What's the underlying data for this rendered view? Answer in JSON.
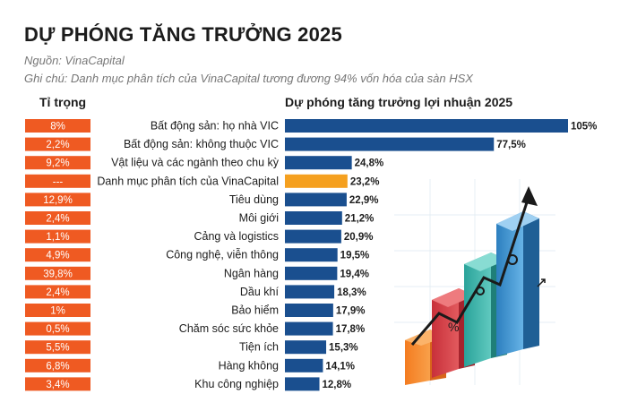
{
  "title": "DỰ PHÓNG TĂNG TRƯỞNG 2025",
  "source": "Nguồn: VinaCapital",
  "note": "Ghi chú: Danh mục phân tích của VinaCapital tương đương 94% vốn hóa của sàn HSX",
  "colors": {
    "weight_box": "#ef5a22",
    "bar": "#1a4f8f",
    "highlight_bar": "#f5a01f",
    "text": "#1c1c1c"
  },
  "chart_data": {
    "type": "bar",
    "orientation": "horizontal",
    "weight_header": "Tỉ trọng",
    "title": "Dự phóng tăng trưởng lợi nhuận 2025",
    "categories": [
      "Bất động sản: họ nhà VIC",
      "Bất động sản: không thuộc VIC",
      "Vật liệu và các ngành theo chu kỳ",
      "Danh mục phân tích của VinaCapital",
      "Tiêu dùng",
      "Môi giới",
      "Cảng và logistics",
      "Công nghệ, viễn thông",
      "Ngân hàng",
      "Dầu khí",
      "Bảo hiểm",
      "Chăm sóc sức khỏe",
      "Tiện ích",
      "Hàng không",
      "Khu công nghiệp"
    ],
    "values": [
      105,
      77.5,
      24.8,
      23.2,
      22.9,
      21.2,
      20.9,
      19.5,
      19.4,
      18.3,
      17.9,
      17.8,
      15.3,
      14.1,
      12.8
    ],
    "value_labels": [
      "105%",
      "77,5%",
      "24,8%",
      "23,2%",
      "22,9%",
      "21,2%",
      "20,9%",
      "19,5%",
      "19,4%",
      "18,3%",
      "17,9%",
      "17,8%",
      "15,3%",
      "14,1%",
      "12,8%"
    ],
    "weights": [
      "8%",
      "2,2%",
      "9,2%",
      "---",
      "12,9%",
      "2,4%",
      "1,1%",
      "4,9%",
      "39,8%",
      "2,4%",
      "1%",
      "0,5%",
      "5,5%",
      "6,8%",
      "3,4%"
    ],
    "highlight_index": 3,
    "xlim": [
      0,
      105
    ],
    "grid": false,
    "legend": "none"
  }
}
